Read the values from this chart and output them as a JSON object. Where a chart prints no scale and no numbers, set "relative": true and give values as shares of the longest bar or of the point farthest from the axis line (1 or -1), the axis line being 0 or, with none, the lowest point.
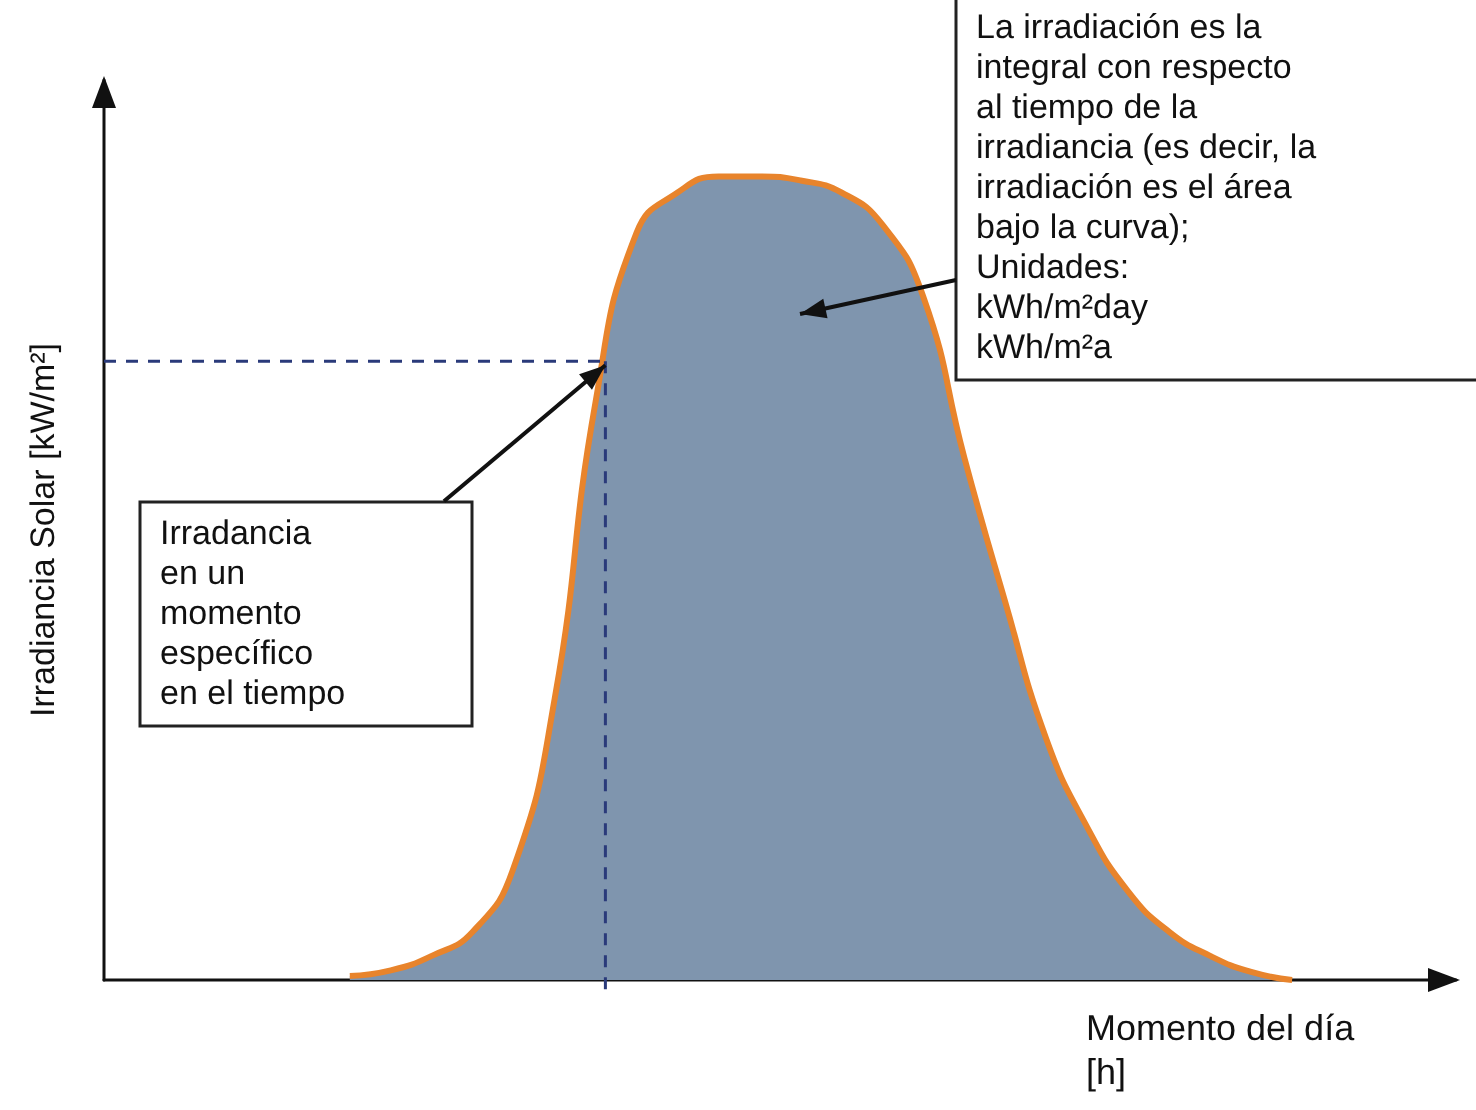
{
  "chart_data": {
    "type": "area",
    "relative": true,
    "xlabel": "Momento del día\n[h]",
    "ylabel": "Irradiancia Solar [kW/m²]",
    "categories": [
      null,
      null,
      null,
      null,
      null,
      null,
      null,
      null,
      null,
      null,
      null,
      null,
      null,
      null,
      null,
      null,
      null,
      null,
      null,
      null,
      null,
      null,
      null,
      null,
      null,
      null,
      null,
      null,
      null,
      null,
      null,
      null,
      null,
      null
    ],
    "ref_lines": [
      {
        "axis": "y",
        "value": 0.77,
        "line_style": "dashed",
        "color": "#2a3a7a"
      }
    ],
    "series": [
      {
        "color": "#7f95ae",
        "values": [
          null,
          null,
          null,
          null,
          null,
          null,
          0.005,
          0.012,
          0.03,
          0.06,
          0.14,
          0.35,
          0.72,
          0.93,
          0.98,
          1.0,
          1.0,
          0.995,
          0.98,
          0.94,
          0.85,
          0.65,
          0.47,
          0.3,
          0.19,
          0.11,
          0.06,
          0.03,
          0.01,
          0,
          null,
          null,
          null,
          null
        ]
      }
    ],
    "annotations": [
      "Irradancia\nen un\nmomento\nespecífico\nen el tiempo",
      "La irradiación es la\nintegral con respecto\nal tiempo de la\nirradiancia (es decir, la\nirradiación es el área\nbajo la curva);\nUnidades:\nkWh/m²day\nkWh/m²a"
    ]
  }
}
